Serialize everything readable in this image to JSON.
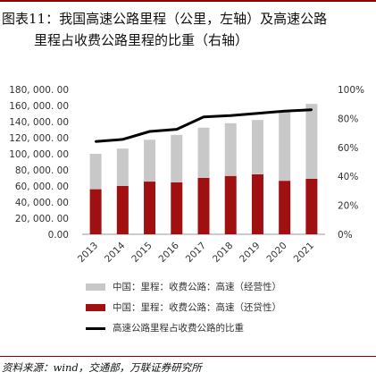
{
  "title": {
    "line1": "图表11：我国高速公路里程（公里，左轴）及高速公路",
    "line2": "里程占收费公路里程的比重（右轴）"
  },
  "colors": {
    "accent": "#8b0000",
    "bar_grey": "#c8c8c8",
    "bar_red": "#a01010",
    "line": "#000000"
  },
  "chart_data": {
    "type": "bar",
    "categories": [
      "2013",
      "2014",
      "2015",
      "2016",
      "2017",
      "2018",
      "2019",
      "2020",
      "2021"
    ],
    "series": [
      {
        "name": "中国：里程：收费公路：高速（经营性）",
        "kind": "stacked-bar",
        "axis": "left",
        "values": [
          44000,
          46500,
          52000,
          59000,
          62500,
          65500,
          67500,
          87000,
          93000
        ]
      },
      {
        "name": "中国：里程：收费公路：高速（还贷性）",
        "kind": "stacked-bar",
        "axis": "left",
        "values": [
          56000,
          60000,
          65500,
          64500,
          70000,
          72500,
          74500,
          66500,
          69000
        ]
      },
      {
        "name": "高速公路里程占收费公路的比重",
        "kind": "line",
        "axis": "right",
        "values": [
          0.64,
          0.655,
          0.71,
          0.725,
          0.81,
          0.82,
          0.835,
          0.85,
          0.86
        ]
      }
    ],
    "y_left": {
      "min": 0,
      "max": 180000,
      "step": 20000,
      "tick_labels": [
        "0.00",
        "20, 000. 00",
        "40, 000. 00",
        "60, 000. 00",
        "80, 000. 00",
        "100, 000. 00",
        "120, 000. 00",
        "140, 000. 00",
        "160, 000. 00",
        "180, 000. 00"
      ]
    },
    "y_right": {
      "min": 0,
      "max": 1.0,
      "step": 0.2,
      "tick_labels": [
        "0%",
        "20%",
        "40%",
        "60%",
        "80%",
        "100%"
      ]
    },
    "grid": false,
    "legend_position": "bottom"
  },
  "source": "资料来源：wind，交通部，万联证券研究所"
}
